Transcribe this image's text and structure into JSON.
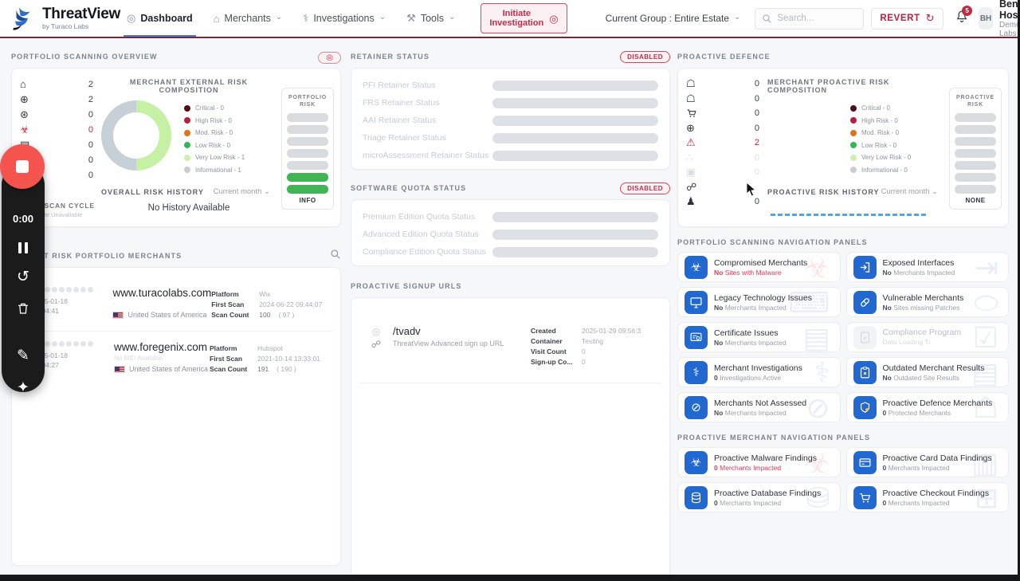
{
  "header": {
    "brand": {
      "name": "ThreatView",
      "tagline": "by Turaco Labs"
    },
    "nav": [
      {
        "label": "Dashboard"
      },
      {
        "label": "Merchants"
      },
      {
        "label": "Investigations"
      },
      {
        "label": "Tools"
      }
    ],
    "initiate_button": "Initiate Investigation",
    "current_group": "Current Group : Entire Estate",
    "search_placeholder": "Search...",
    "revert_label": "REVERT",
    "notification_count": "5",
    "user": {
      "initials": "BH",
      "name": "Benjamin Hosack",
      "org": "Demo - Turaco Labs"
    }
  },
  "recorder": {
    "timer": "0:00"
  },
  "portfolio_overview": {
    "title": "PORTFOLIO SCANNING OVERVIEW",
    "stats": [
      {
        "icon": "storefront-icon",
        "value": "2"
      },
      {
        "icon": "globe-icon",
        "value": "2"
      },
      {
        "icon": "globe-alert-icon",
        "value": "0"
      },
      {
        "icon": "biohazard-icon",
        "value": "0"
      },
      {
        "icon": "id-card-icon",
        "value": "0"
      },
      {
        "icon": "merchant-add-icon",
        "value": "0"
      },
      {
        "icon": "scan-icon",
        "value": "0"
      }
    ],
    "composition_title": "MERCHANT EXTERNAL RISK COMPOSITION",
    "legend": [
      {
        "label": "Critical - 0",
        "color": "#4e0e17"
      },
      {
        "label": "High Risk - 0",
        "color": "#bb1f3e"
      },
      {
        "label": "Mod. Risk - 0",
        "color": "#e2711d"
      },
      {
        "label": "Low Risk - 0",
        "color": "#35b558"
      },
      {
        "label": "Very Low Risk - 1",
        "color": "#cdf0ae"
      },
      {
        "label": "Informational - 1",
        "color": "#c9cdd3"
      }
    ],
    "donut": {
      "very_low_color": "#c6f0a4",
      "informational_color": "#c7d0d7"
    },
    "risk_box": {
      "title": "PORTFOLIO RISK",
      "label": "INFO",
      "total": 7,
      "filled": 2
    },
    "history_title": "OVERALL RISK HISTORY",
    "history_filter": "Current month",
    "history_empty": "No History Available",
    "last_scan_title": "LAST SCAN CYCLE",
    "last_scan_value": "Scan Date Unavailable"
  },
  "retainer": {
    "title": "RETAINER STATUS",
    "badge": "DISABLED",
    "rows": [
      "PFI Retainer Status",
      "FRS Retainer Status",
      "AAI Retainer Status",
      "Triage Retainer Status",
      "microAssessment Retainer Status"
    ]
  },
  "software_quota": {
    "title": "SOFTWARE QUOTA STATUS",
    "badge": "DISABLED",
    "rows": [
      "Premium Edition Quota Status",
      "Advanced Edition Quota Status",
      "Compliance Edition Quota Status"
    ]
  },
  "proactive_defence": {
    "title": "PROACTIVE DEFENCE",
    "stats": [
      {
        "icon": "shield-check-icon",
        "value": "0"
      },
      {
        "icon": "shield-star-icon",
        "value": "0"
      },
      {
        "icon": "cart-icon",
        "value": "0"
      },
      {
        "icon": "globe-stand-icon",
        "value": "0"
      },
      {
        "icon": "warning-icon",
        "value": "2"
      },
      {
        "icon": "share-icon",
        "value": "0"
      },
      {
        "icon": "copy-icon",
        "value": "0"
      },
      {
        "icon": "link-icon",
        "value": ""
      },
      {
        "icon": "people-icon",
        "value": "0"
      }
    ],
    "composition_title": "MERCHANT PROACTIVE RISK COMPOSITION",
    "legend": [
      {
        "label": "Critical - 0",
        "color": "#4e0e17"
      },
      {
        "label": "High Risk - 0",
        "color": "#bb1f3e"
      },
      {
        "label": "Mod. Risk - 0",
        "color": "#e2711d"
      },
      {
        "label": "Low Risk - 0",
        "color": "#35b558"
      },
      {
        "label": "Very Low Risk - 0",
        "color": "#cdf0ae"
      },
      {
        "label": "Informational - 0",
        "color": "#c9cdd3"
      }
    ],
    "risk_box": {
      "title": "PROACTIVE RISK",
      "label": "NONE",
      "total": 7,
      "filled": 0
    },
    "history_title": "PROACTIVE RISK HISTORY",
    "history_filter": "Current month"
  },
  "merchants": {
    "title": "HIGHEST RISK PORTFOLIO MERCHANTS",
    "labels": {
      "platform": "Platform",
      "first_scan": "First Scan",
      "scan_count": "Scan Count"
    },
    "rows": [
      {
        "date": "2025-01-18",
        "time": "12:04:41",
        "domain": "www.turacolabs.com",
        "sub": "-",
        "country": "United States of America",
        "platform": "Wix",
        "first_scan": "2024-06-22 09:44:07",
        "scan_count": "100",
        "scan_count_alt": "( 97 )",
        "green_dots": 3
      },
      {
        "date": "2025-01-18",
        "time": "12:04:27",
        "domain": "www.foregenix.com",
        "sub": "No MID Available",
        "country": "United States of America",
        "platform": "Hubspot",
        "first_scan": "2021-10-14 13:33:01",
        "scan_count": "191",
        "scan_count_alt": "( 190 )",
        "green_dots": 0
      }
    ]
  },
  "signup_urls": {
    "title": "PROACTIVE SIGNUP URLS",
    "labels": {
      "created": "Created",
      "container": "Container",
      "visit_count": "Visit Count",
      "signup_count": "Sign-up Co..."
    },
    "rows": [
      {
        "path": "/tvadv",
        "description": "ThreatView Advanced sign up URL",
        "created": "2025-01-29 09:56:3",
        "container": "Testing",
        "visit_count": "0",
        "signup_count": "0"
      }
    ]
  },
  "nav_panels": {
    "portfolio_title": "PORTFOLIO SCANNING NAVIGATION PANELS",
    "portfolio_cards": [
      {
        "title": "Compromised Merchants",
        "prefix": "No",
        "rest": "Sites with Malware",
        "icon": "biohazard-icon",
        "alert": true
      },
      {
        "title": "Exposed Interfaces",
        "prefix": "No",
        "rest": "Merchants Impacted",
        "icon": "exposed-interface-icon"
      },
      {
        "title": "Legacy Technology Issues",
        "prefix": "No",
        "rest": "Merchants Impacted",
        "icon": "legacy-monitor-icon"
      },
      {
        "title": "Vulnerable Merchants",
        "prefix": "No",
        "rest": "Sites missing Patches",
        "icon": "patch-capsule-icon"
      },
      {
        "title": "Certificate Issues",
        "prefix": "No",
        "rest": "Merchants Impacted",
        "icon": "certificate-icon"
      },
      {
        "title": "Compliance Program",
        "prefix": "",
        "rest": "Data Loading",
        "icon": "compliance-icon",
        "loading": true
      },
      {
        "title": "Merchant Investigations",
        "prefix": "0",
        "rest": "Investigations Active",
        "icon": "stethoscope-icon"
      },
      {
        "title": "Outdated Merchant Results",
        "prefix": "No",
        "rest": "Outdated Site Results",
        "icon": "clipboard-x-icon"
      },
      {
        "title": "Merchants Not Assessed",
        "prefix": "No",
        "rest": "Merchants Impacted",
        "icon": "eye-off-icon"
      },
      {
        "title": "Proactive Defence Merchants",
        "prefix": "0",
        "rest": "Protected Merchants",
        "icon": "shield-star-icon"
      }
    ],
    "proactive_title": "PROACTIVE MERCHANT NAVIGATION PANELS",
    "proactive_cards": [
      {
        "title": "Proactive Malware Findings",
        "prefix": "0",
        "rest": "Merchants Impacted",
        "icon": "biohazard-icon",
        "alert": true
      },
      {
        "title": "Proactive Card Data Findings",
        "prefix": "0",
        "rest": "Merchants Impacted",
        "icon": "credit-card-icon"
      },
      {
        "title": "Proactive Database Findings",
        "prefix": "0",
        "rest": "Merchants Impacted",
        "icon": "database-icon"
      },
      {
        "title": "Proactive Checkout Findings",
        "prefix": "0",
        "rest": "Merchants Impacted",
        "icon": "cart-icon"
      }
    ]
  }
}
